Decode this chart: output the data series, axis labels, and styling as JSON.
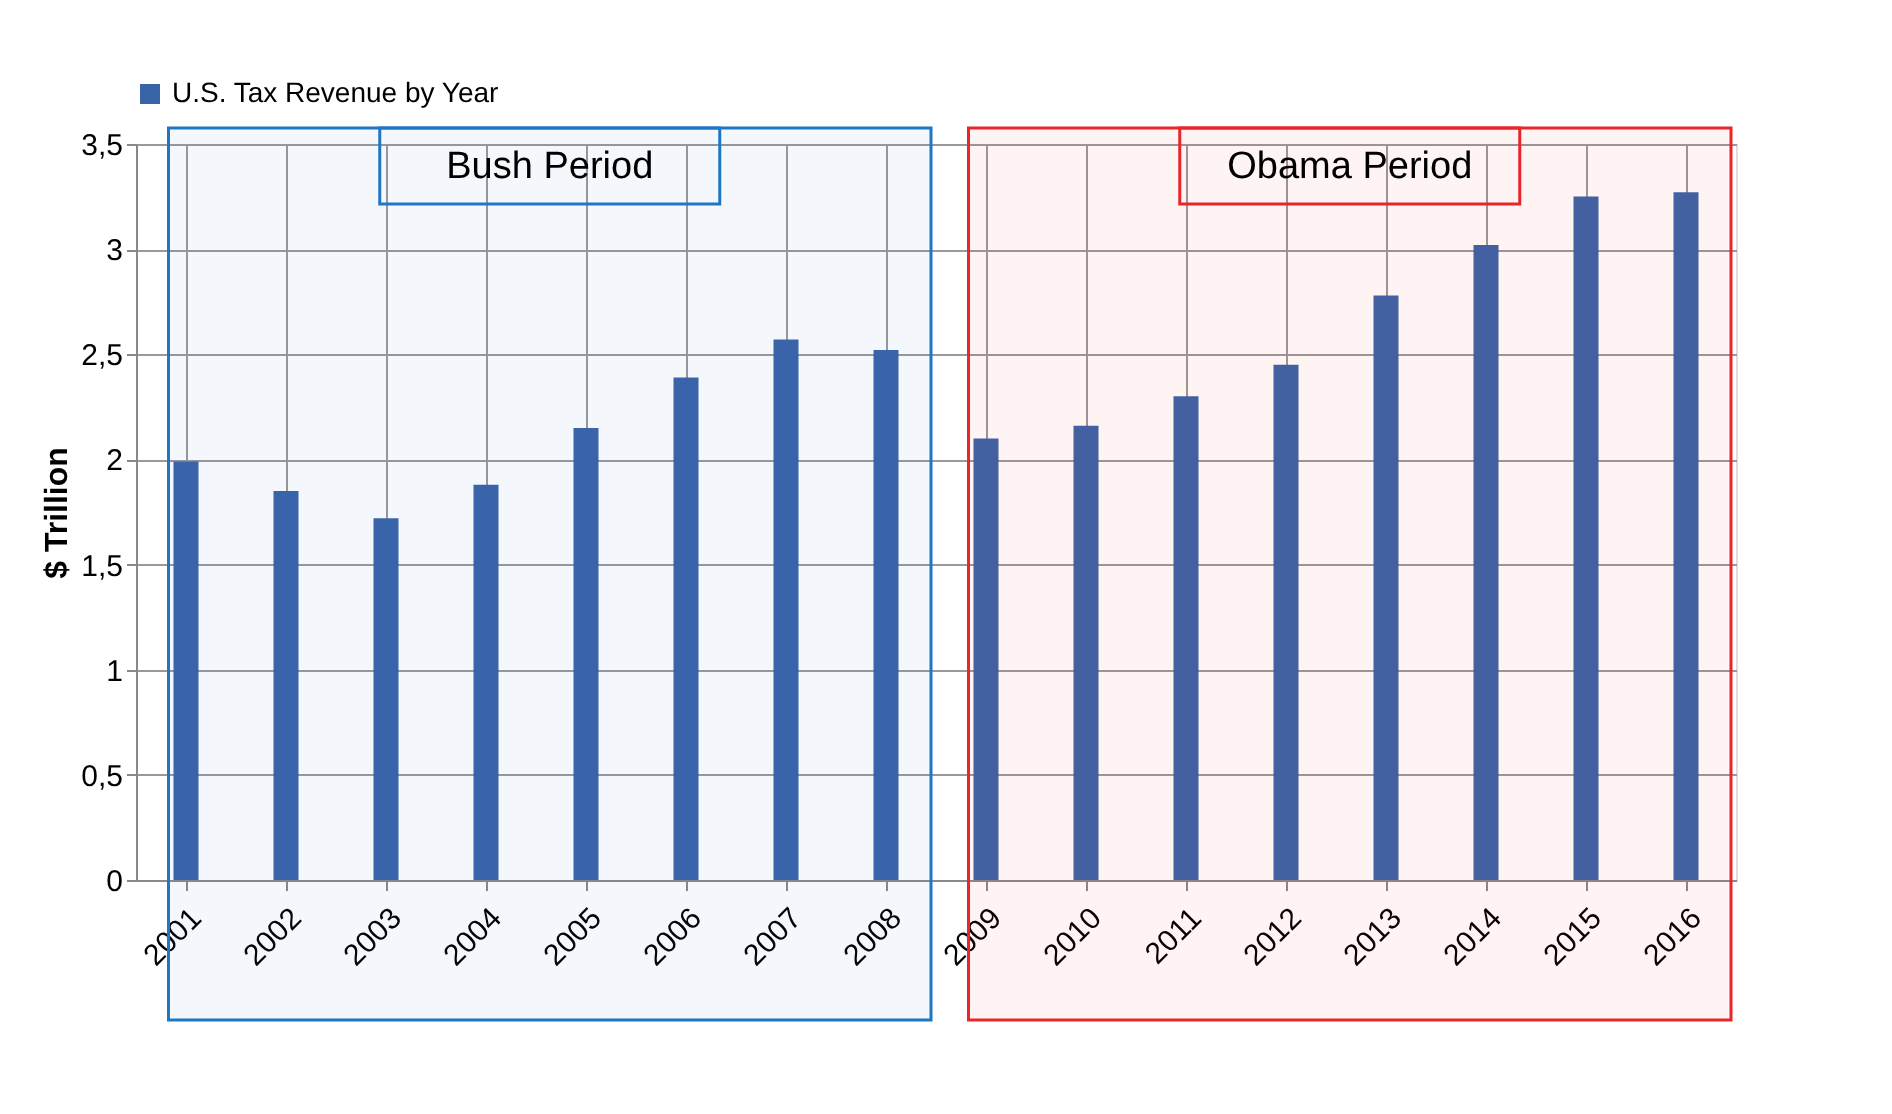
{
  "chart_data": {
    "type": "bar",
    "ylabel": "$ Trillion",
    "categories": [
      "2001",
      "2002",
      "2003",
      "2004",
      "2005",
      "2006",
      "2007",
      "2008",
      "2009",
      "2010",
      "2011",
      "2012",
      "2013",
      "2014",
      "2015",
      "2016"
    ],
    "series": [
      {
        "name": "U.S. Tax Revenue by Year",
        "color": "#3a64a8",
        "values": [
          1.99,
          1.85,
          1.72,
          1.88,
          2.15,
          2.39,
          2.57,
          2.52,
          2.1,
          2.16,
          2.3,
          2.45,
          2.78,
          3.02,
          3.25,
          3.27
        ]
      }
    ],
    "ylim": [
      0,
      3.5
    ],
    "yticks": [
      0,
      {
        "value": 0.5,
        "label": "0,5"
      },
      1,
      {
        "value": 1.5,
        "label": "1,5"
      },
      2,
      {
        "value": 2.5,
        "label": "2,5"
      },
      3,
      {
        "value": 3.5,
        "label": "3,5"
      }
    ],
    "bands": [
      {
        "axis": "x",
        "from": "2001",
        "to": "2008",
        "label": "Bush Period",
        "color": "#1f77c4"
      },
      {
        "axis": "x",
        "from": "2009",
        "to": "2016",
        "label": "Obama Period",
        "color": "#e8262a"
      }
    ],
    "grid": true,
    "legend": "top"
  }
}
